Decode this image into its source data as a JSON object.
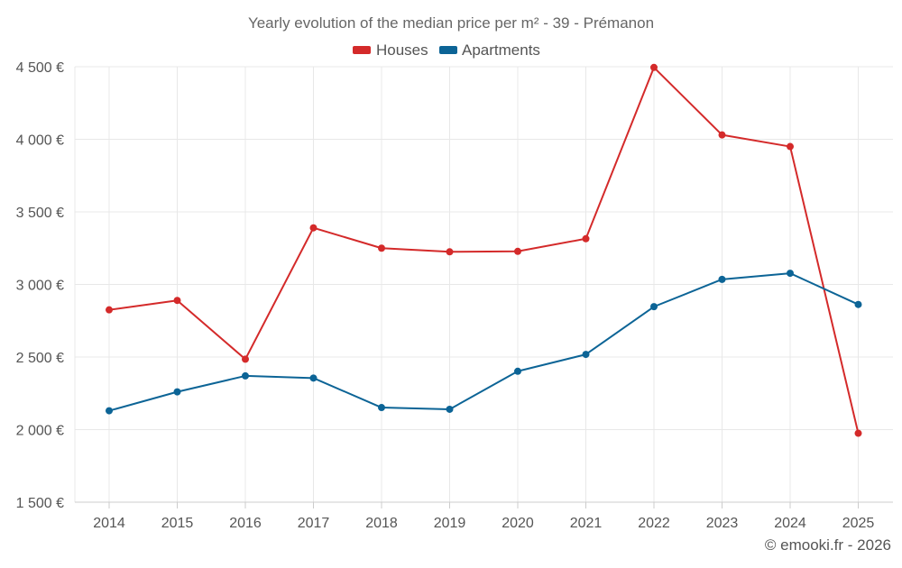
{
  "chart_data": {
    "type": "line",
    "title": "Yearly evolution of the median price per m² - 39 - Prémanon",
    "categories": [
      "2014",
      "2015",
      "2016",
      "2017",
      "2018",
      "2019",
      "2020",
      "2021",
      "2022",
      "2023",
      "2024",
      "2025"
    ],
    "series": [
      {
        "name": "Houses",
        "color": "#d42a2a",
        "values": [
          2825,
          2890,
          2485,
          3390,
          3250,
          3225,
          3228,
          3315,
          4495,
          4030,
          3950,
          1975
        ]
      },
      {
        "name": "Apartments",
        "color": "#0c6496",
        "values": [
          2130,
          2260,
          2370,
          2355,
          2152,
          2140,
          2402,
          2518,
          2847,
          3035,
          3077,
          2862
        ]
      }
    ],
    "ylim": [
      1500,
      4500
    ],
    "yticks": [
      1500,
      2000,
      2500,
      3000,
      3500,
      4000,
      4500
    ],
    "ytick_labels": [
      "1 500 €",
      "2 000 €",
      "2 500 €",
      "3 000 €",
      "3 500 €",
      "4 000 €",
      "4 500 €"
    ],
    "xlabel": "",
    "ylabel": "",
    "grid": true,
    "legend_position": "top-center"
  },
  "credit": "© emooki.fr - 2026",
  "colors": {
    "grid": "#e8e8e8",
    "axis": "#cccccc",
    "text": "#555555",
    "title": "#666666"
  }
}
